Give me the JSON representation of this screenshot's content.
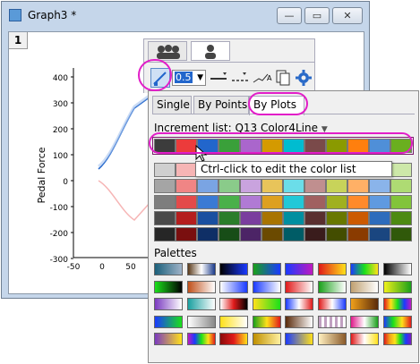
{
  "window": {
    "title": "Graph3 *",
    "min_label": "—",
    "max_label": "▭",
    "close_label": "✕"
  },
  "graph": {
    "layer_label": "1",
    "ylabel": "Pedal Force",
    "yticks": [
      "400",
      "300",
      "200",
      "100",
      "0",
      "-100",
      "-200",
      "-300"
    ],
    "xticks": [
      "-50",
      "0",
      "50"
    ]
  },
  "toolbar": {
    "line_width_value": "0.5"
  },
  "popup": {
    "tabs": [
      {
        "label": "Single"
      },
      {
        "label": "By Points"
      },
      {
        "label": "By Plots"
      }
    ],
    "increment_label": "Increment list: Q13 Color4Line",
    "tooltip": "Ctrl-click to edit the color list",
    "palettes_label": "Palettes",
    "main_colors": [
      "#3c3c3c",
      "#ec3b3b",
      "#2266cc",
      "#3aa03a",
      "#aa66cc",
      "#d49a00",
      "#00bcd0",
      "#7a4a4a",
      "#8a9a00",
      "#ff7f0e",
      "#4f8fd8",
      "#6aaf1f"
    ],
    "shade_rows": [
      [
        "#cfcfcf",
        "#f6b5b5",
        "#a9c4ee",
        "#b7e0b7",
        "#dcc4ea",
        "#f2dc9a",
        "#a6eaf2",
        "#d9b9b9",
        "#dce49a",
        "#ffd0a3",
        "#b4d0f2",
        "#cde8a9"
      ],
      [
        "#a5a5a5",
        "#f08585",
        "#7aa4e3",
        "#8acb8a",
        "#c9a3de",
        "#e8c45a",
        "#6bdde9",
        "#c08f8f",
        "#c8d35a",
        "#ffb066",
        "#8ab4ea",
        "#aedb73"
      ],
      [
        "#7d7d7d",
        "#e34a4a",
        "#3a7ad4",
        "#4ab04a",
        "#b07ad4",
        "#dda020",
        "#22c8d8",
        "#a06060",
        "#a0b020",
        "#ff8a2a",
        "#5f9ae0",
        "#82c43a"
      ],
      [
        "#4a4a4a",
        "#b41e1e",
        "#1a4fa0",
        "#2a7d2a",
        "#7a3e9e",
        "#a87400",
        "#008fa0",
        "#5a3030",
        "#687800",
        "#cc5a00",
        "#2d6cbc",
        "#4d8a12"
      ],
      [
        "#262626",
        "#7a0f0f",
        "#0f2f66",
        "#174d17",
        "#4c2466",
        "#6b4a00",
        "#005c66",
        "#3a1c1c",
        "#434d00",
        "#8a3b00",
        "#1a4680",
        "#30590a"
      ]
    ],
    "palettes": [
      [
        "grad-teal-gray",
        "grad-brown-white-blue",
        "grad-black-blue",
        "grad-green-blue",
        "grad-blue-purple",
        "grad-red-yellow",
        "grad-multi-yellow",
        "grad-black-white"
      ],
      [
        "grad-green-black",
        "grad-orange-white",
        "grad-white-blue",
        "grad-blue-white",
        "grad-red-white",
        "grad-green-white",
        "grad-tan-white",
        "grad-yellow-green"
      ],
      [
        "grad-purple-white",
        "grad-teal-white",
        "grad-red-black",
        "grad-green-yellow",
        "grad-blue-red",
        "grad-red-blue",
        "grad-orange-brown",
        "grad-rainbow-1"
      ],
      [
        "grad-blue-green",
        "grad-white-gray",
        "grad-yellow-white",
        "grad-green-red",
        "grad-brown-white",
        "grad-stripes",
        "grad-pink-green",
        "grad-rainbow-2"
      ],
      [
        "grad-purple-yellow",
        "grad-spectrum",
        "grad-red-yellow-2",
        "grad-gold",
        "grad-blue-yellow",
        "grad-tan-brown",
        "grad-red-yellow-3",
        "grad-rainbow-3"
      ]
    ]
  },
  "colors": {
    "highlight": "#e21ec8",
    "accent": "#2266cc"
  }
}
